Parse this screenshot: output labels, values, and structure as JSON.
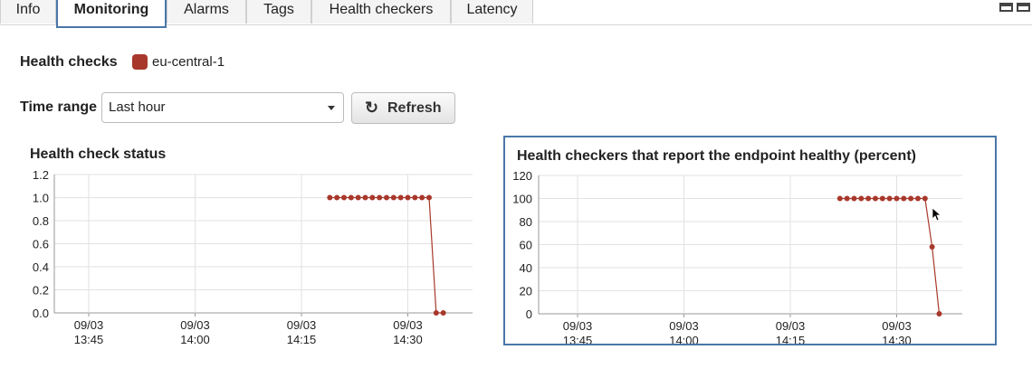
{
  "tabs": [
    {
      "label": "Info",
      "active": false
    },
    {
      "label": "Monitoring",
      "active": true
    },
    {
      "label": "Alarms",
      "active": false
    },
    {
      "label": "Tags",
      "active": false
    },
    {
      "label": "Health checkers",
      "active": false
    },
    {
      "label": "Latency",
      "active": false
    }
  ],
  "health_checks": {
    "label": "Health checks",
    "legend_color": "#a8382b",
    "legend_label": "eu-central-1"
  },
  "time_range": {
    "label": "Time range",
    "selected": "Last hour"
  },
  "refresh_button": {
    "label": "Refresh",
    "icon": "refresh-icon"
  },
  "colors": {
    "series": "#a8382b",
    "selected_border": "#4a76a8"
  },
  "chart_data": [
    {
      "type": "line",
      "title": "Health check status",
      "x_ticks": [
        "09/03 13:45",
        "09/03 14:00",
        "09/03 14:15",
        "09/03 14:30"
      ],
      "ylim": [
        0,
        1.2
      ],
      "y_ticks": [
        "0.0",
        "0.2",
        "0.4",
        "0.6",
        "0.8",
        "1.0",
        "1.2"
      ],
      "series": [
        {
          "color": "#a8382b",
          "x": [
            "14:19",
            "14:20",
            "14:21",
            "14:22",
            "14:23",
            "14:24",
            "14:25",
            "14:26",
            "14:27",
            "14:28",
            "14:29",
            "14:30",
            "14:31",
            "14:32",
            "14:33",
            "14:34",
            "14:35"
          ],
          "values": [
            1,
            1,
            1,
            1,
            1,
            1,
            1,
            1,
            1,
            1,
            1,
            1,
            1,
            1,
            1,
            0,
            0
          ]
        }
      ]
    },
    {
      "type": "line",
      "title": "Health checkers that report the endpoint healthy (percent)",
      "x_ticks": [
        "09/03 13:45",
        "09/03 14:00",
        "09/03 14:15",
        "09/03 14:30"
      ],
      "ylim": [
        0,
        120
      ],
      "y_ticks": [
        "0",
        "20",
        "40",
        "60",
        "80",
        "100",
        "120"
      ],
      "series": [
        {
          "color": "#a8382b",
          "x": [
            "14:22",
            "14:23",
            "14:24",
            "14:25",
            "14:26",
            "14:27",
            "14:28",
            "14:29",
            "14:30",
            "14:31",
            "14:32",
            "14:33",
            "14:34",
            "14:35",
            "14:36"
          ],
          "values": [
            100,
            100,
            100,
            100,
            100,
            100,
            100,
            100,
            100,
            100,
            100,
            100,
            100,
            58,
            0
          ]
        }
      ]
    }
  ]
}
